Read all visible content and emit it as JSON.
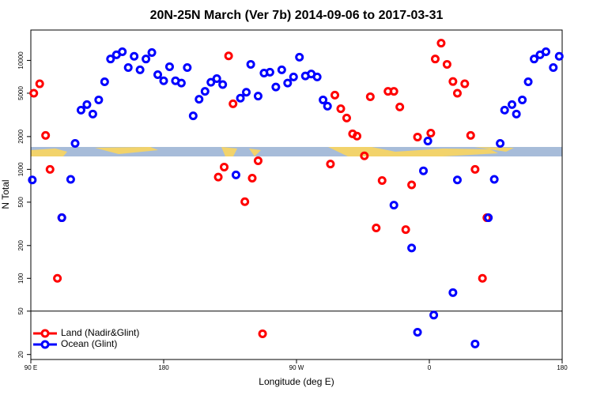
{
  "chart_data": {
    "type": "scatter",
    "title": "20N-25N March (Ver 7b)   2014-09-06 to 2017-03-31",
    "x_label": "Longitude (deg E)",
    "y_label": "N Total",
    "xlim": [
      90,
      450
    ],
    "xticks": [
      {
        "value": 90,
        "label": "90 E"
      },
      180,
      {
        "value": 270,
        "label": "90 W"
      },
      {
        "value": 360,
        "label": "0"
      },
      {
        "value": 450,
        "label": "180"
      }
    ],
    "ylim": [
      18,
      19000
    ],
    "yticks": [
      20,
      50,
      100,
      200,
      500,
      1000,
      2000,
      5000,
      10000
    ],
    "log_y": true,
    "reference_line": 50,
    "legend": "lower left",
    "series": [
      {
        "name": "Land (Nadir&Glint)",
        "color": "#ff0000",
        "x": [
          92,
          96,
          100,
          103,
          108,
          111,
          217,
          221,
          224,
          227,
          235,
          240,
          244,
          247,
          293,
          296,
          300,
          304,
          308,
          311,
          316,
          320,
          324,
          328,
          332,
          336,
          340,
          344,
          348,
          352,
          361,
          364,
          368,
          372,
          376,
          379,
          384,
          388,
          391,
          396,
          399
        ],
        "values": [
          5000,
          6100,
          2050,
          1000,
          100,
          360,
          850,
          1050,
          11000,
          4000,
          505,
          830,
          1200,
          31,
          1120,
          4800,
          3600,
          2960,
          2120,
          2020,
          1330,
          4640,
          290,
          790,
          5200,
          5200,
          3740,
          280,
          720,
          1980,
          2150,
          10300,
          14400,
          9200,
          6400,
          5000,
          6100,
          2050,
          1000,
          100,
          360
        ]
      },
      {
        "name": "Ocean (Glint)",
        "color": "#0000ff",
        "x": [
          91,
          111,
          117,
          120,
          124,
          128,
          132,
          136,
          140,
          144,
          148,
          152,
          156,
          160,
          164,
          168,
          172,
          176,
          180,
          184,
          188,
          192,
          196,
          200,
          204,
          208,
          212,
          216,
          220,
          229,
          232,
          236,
          239,
          244,
          248,
          252,
          256,
          260,
          264,
          268,
          272,
          276,
          280,
          284,
          288,
          291,
          336,
          348,
          352,
          356,
          359,
          363,
          376,
          379,
          391,
          400,
          404,
          408,
          411,
          416,
          419,
          423,
          427,
          431,
          435,
          439,
          444,
          448
        ],
        "values": [
          800,
          360,
          810,
          1730,
          3500,
          3930,
          3220,
          4340,
          6370,
          10300,
          11250,
          12000,
          8600,
          10900,
          8200,
          10300,
          11800,
          7400,
          6500,
          8750,
          6500,
          6200,
          8600,
          3100,
          4400,
          5200,
          6300,
          6800,
          6000,
          890,
          4500,
          5100,
          9200,
          4700,
          7650,
          7800,
          5700,
          8200,
          6200,
          7050,
          10700,
          7200,
          7500,
          7050,
          4340,
          3800,
          470,
          190,
          32,
          970,
          1820,
          46,
          74,
          800,
          25,
          360,
          810,
          1730,
          3500,
          3930,
          3220,
          4340,
          6370,
          10300,
          11250,
          12000,
          8600,
          10900
        ]
      }
    ]
  }
}
